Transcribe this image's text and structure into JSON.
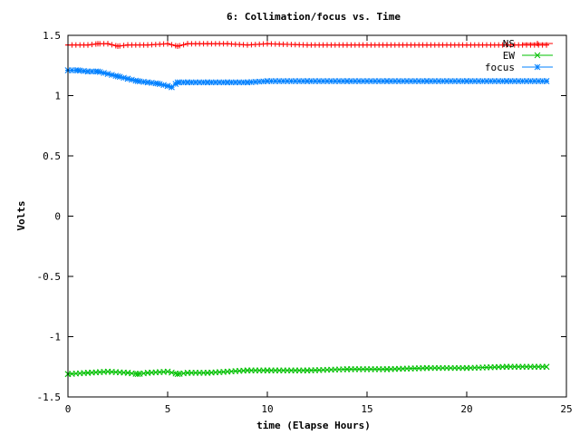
{
  "chart_data": {
    "type": "line",
    "title": "6: Collimation/focus vs. Time",
    "xlabel": "time (Elapse Hours)",
    "ylabel": "Volts",
    "xlim": [
      0,
      25
    ],
    "ylim": [
      -1.5,
      1.5
    ],
    "x_ticks": [
      "0",
      "5",
      "10",
      "15",
      "20",
      "25"
    ],
    "y_ticks": [
      "-1.5",
      "-1",
      "-0.5",
      "0",
      "0.5",
      "1",
      "1.5"
    ],
    "grid": false,
    "legend_position": "top-right",
    "series": [
      {
        "name": "NS",
        "color": "#ff0000",
        "marker": "plus",
        "x": [
          0,
          1,
          1.5,
          2,
          2.5,
          3,
          4,
          5,
          5.5,
          6,
          7,
          8,
          9,
          10,
          12,
          14,
          16,
          18,
          20,
          22,
          24
        ],
        "y": [
          1.42,
          1.42,
          1.43,
          1.43,
          1.41,
          1.42,
          1.42,
          1.43,
          1.41,
          1.43,
          1.43,
          1.43,
          1.42,
          1.43,
          1.42,
          1.42,
          1.42,
          1.42,
          1.42,
          1.42,
          1.42
        ]
      },
      {
        "name": "EW",
        "color": "#00c000",
        "marker": "cross",
        "x": [
          0,
          1,
          2,
          3,
          3.5,
          4,
          5,
          5.5,
          6,
          7,
          8,
          9,
          10,
          12,
          14,
          16,
          18,
          20,
          22,
          24
        ],
        "y": [
          -1.31,
          -1.3,
          -1.29,
          -1.3,
          -1.31,
          -1.3,
          -1.29,
          -1.31,
          -1.3,
          -1.3,
          -1.29,
          -1.28,
          -1.28,
          -1.28,
          -1.27,
          -1.27,
          -1.26,
          -1.26,
          -1.25,
          -1.25
        ]
      },
      {
        "name": "focus",
        "color": "#0080ff",
        "marker": "star",
        "x": [
          0,
          0.5,
          1,
          1.5,
          2,
          2.5,
          3,
          3.5,
          4,
          4.5,
          5,
          5.2,
          5.5,
          6,
          7,
          8,
          9,
          10,
          12,
          14,
          16,
          18,
          20,
          22,
          24
        ],
        "y": [
          1.21,
          1.21,
          1.2,
          1.2,
          1.18,
          1.16,
          1.14,
          1.12,
          1.11,
          1.1,
          1.08,
          1.07,
          1.11,
          1.11,
          1.11,
          1.11,
          1.11,
          1.12,
          1.12,
          1.12,
          1.12,
          1.12,
          1.12,
          1.12,
          1.12
        ]
      }
    ]
  }
}
